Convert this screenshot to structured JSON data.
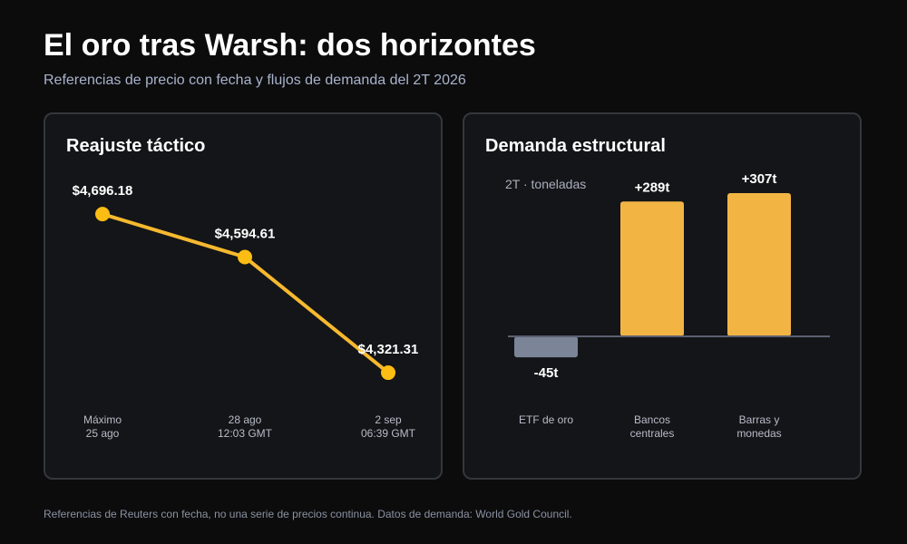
{
  "header": {
    "title": "El oro tras Warsh: dos horizontes",
    "subtitle": "Referencias de precio con fecha y flujos de demanda del 2T 2026"
  },
  "footnote": "Referencias de Reuters con fecha, no una serie de precios continua. Datos de demanda: World Gold Council.",
  "colors": {
    "gold": "#f2b544",
    "gold_line": "#f6b92f",
    "gold_marker": "#fbbd13",
    "negative_bar": "#7c8497",
    "baseline": "#5b6070",
    "background": "#0c0c0d",
    "panel": "#141518"
  },
  "chart_data": [
    {
      "type": "line",
      "title": "Reajuste táctico",
      "categories": [
        [
          "Máximo",
          "25 ago"
        ],
        [
          "28 ago",
          "12:03 GMT"
        ],
        [
          "2 sep",
          "06:39 GMT"
        ]
      ],
      "values": [
        4696.18,
        4594.61,
        4321.31
      ],
      "data_labels": [
        "$4,696.18",
        "$4,594.61",
        "$4,321.31"
      ],
      "ylim": [
        4300,
        4720
      ],
      "grid": false,
      "legend": "none"
    },
    {
      "type": "bar",
      "title": "Demanda estructural",
      "unit_label": "2T · toneladas",
      "categories": [
        [
          "ETF de oro"
        ],
        [
          "Bancos",
          "centrales"
        ],
        [
          "Barras y",
          "monedas"
        ]
      ],
      "values": [
        -45,
        289,
        307
      ],
      "data_labels": [
        "-45t",
        "+289t",
        "+307t"
      ],
      "ylim": [
        -60,
        320
      ],
      "grid": false,
      "legend": "none"
    }
  ]
}
